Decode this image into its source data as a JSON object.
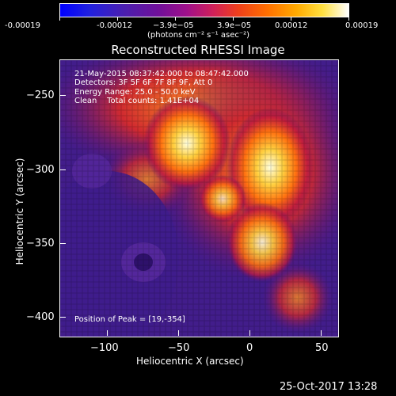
{
  "colorbar": {
    "tick_labels": [
      "-0.00019",
      "-0.00012",
      "−3.9e−05",
      "3.9e−05",
      "0.00012",
      "0.00019"
    ],
    "units": "(photons cm⁻² s⁻¹ asec⁻²)",
    "range": [
      -0.00019,
      0.00019
    ],
    "colormap": "blue-purple-red-orange-yellow-white"
  },
  "title": "Reconstructed RHESSI Image",
  "annotations": {
    "time": "21-May-2015 08:37:42.000 to 08:47:42.000",
    "detectors": "Detectors: 3F 5F 6F 7F 8F 9F, Att 0",
    "energy": "Energy Range: 25.0 - 50.0 keV",
    "clean": "Clean    Total counts: 1.41E+04",
    "peak": "Position of Peak = [19,-354]"
  },
  "axes": {
    "xlabel": "Heliocentric X (arcsec)",
    "ylabel": "Heliocentric Y (arcsec)",
    "xticks": [
      "−100",
      "−50",
      "0",
      "50"
    ],
    "yticks": [
      "−250",
      "−300",
      "−350",
      "−400"
    ]
  },
  "footer_timestamp": "25-Oct-2017 13:28",
  "chart_data": {
    "type": "heatmap",
    "title": "Reconstructed RHESSI Image",
    "xlabel": "Heliocentric X (arcsec)",
    "ylabel": "Heliocentric Y (arcsec)",
    "xlim": [
      -133,
      60
    ],
    "ylim": [
      -418,
      -225
    ],
    "xticks": [
      -100,
      -50,
      0,
      50
    ],
    "yticks": [
      -250,
      -300,
      -350,
      -400
    ],
    "peak": [
      19,
      -354
    ],
    "energy_range_kev": [
      25.0,
      50.0
    ],
    "total_counts": 14100,
    "grid": false
  }
}
